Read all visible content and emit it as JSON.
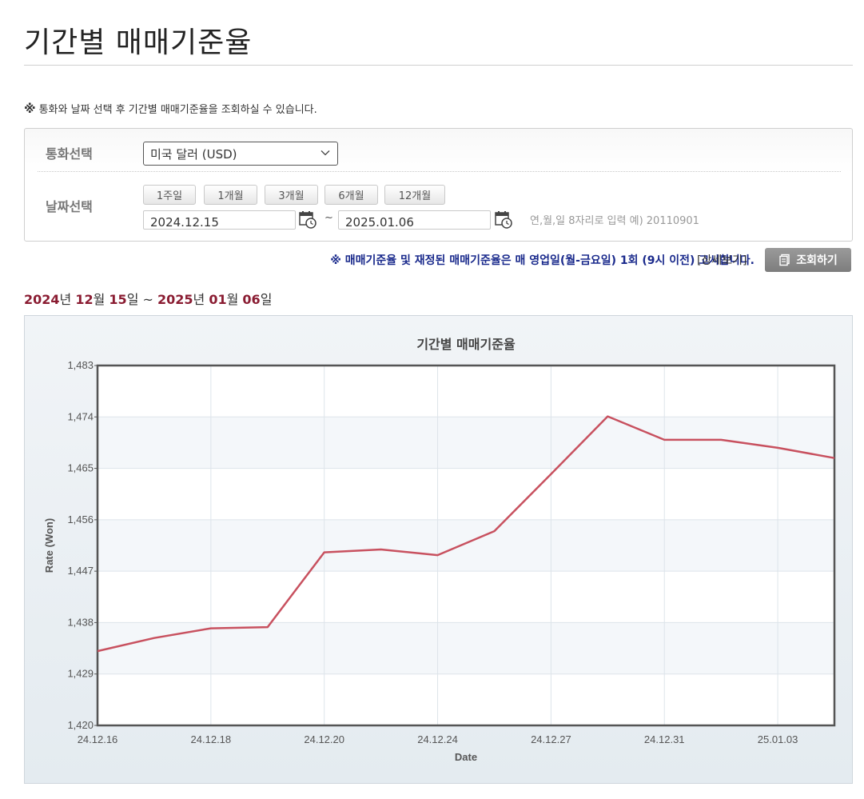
{
  "page": {
    "title": "기간별 매매기준율"
  },
  "notice": {
    "mark": "※",
    "text": "통화와 날짜 선택 후 기간별 매매기준율을 조회하실 수 있습니다."
  },
  "search": {
    "currency_label": "통화선택",
    "currency_value": "미국 달러 (USD)",
    "date_label": "날짜선택",
    "periods": [
      "1주일",
      "1개월",
      "3개월",
      "6개월",
      "12개월"
    ],
    "start_date": "2024.12.15",
    "tilde": "~",
    "end_date": "2025.01.06",
    "hint": "연,월,일 8자리로 입력 예) 20110901"
  },
  "info": {
    "text": "※ 매매기준율 및 재정된 매매기준율은 매 영업일(월-금요일) 1회 (9시 이전) 고시합니다.",
    "detail_link": "[상세보기]",
    "query_button": "조회하기"
  },
  "range": {
    "y1": "2024",
    "u1": "년 ",
    "m1": "12",
    "u2": "월 ",
    "d1": "15",
    "u3": "일 ~ ",
    "y2": "2025",
    "u4": "년 ",
    "m2": "01",
    "u5": "월 ",
    "d2": "06",
    "u6": "일"
  },
  "colors": {
    "line": "#c8515f",
    "accent": "#8a1c32",
    "info": "#1a2a8c"
  },
  "chart_data": {
    "type": "line",
    "title": "기간별 매매기준율",
    "xlabel": "Date",
    "ylabel": "Rate (Won)",
    "ylim": [
      1420,
      1483
    ],
    "yticks": [
      1420,
      1429,
      1438,
      1447,
      1456,
      1465,
      1474,
      1483
    ],
    "ytick_labels": [
      "1,420",
      "1,429",
      "1,438",
      "1,447",
      "1,456",
      "1,465",
      "1,474",
      "1,483"
    ],
    "x": [
      "24.12.16",
      "24.12.17",
      "24.12.18",
      "24.12.19",
      "24.12.20",
      "24.12.23",
      "24.12.24",
      "24.12.26",
      "24.12.27",
      "24.12.30",
      "24.12.31",
      "25.01.02",
      "25.01.03",
      "25.01.06"
    ],
    "x_tick_labels": [
      "24.12.16",
      "24.12.18",
      "24.12.20",
      "24.12.24",
      "24.12.27",
      "24.12.31",
      "25.01.03"
    ],
    "series": [
      {
        "values": [
          1433.0,
          1435.3,
          1437.0,
          1437.2,
          1450.3,
          1450.8,
          1449.8,
          1454.0,
          1464.0,
          1474.1,
          1470.0,
          1470.0,
          1468.6,
          1466.8
        ]
      }
    ],
    "grid": true,
    "legend": "none"
  }
}
